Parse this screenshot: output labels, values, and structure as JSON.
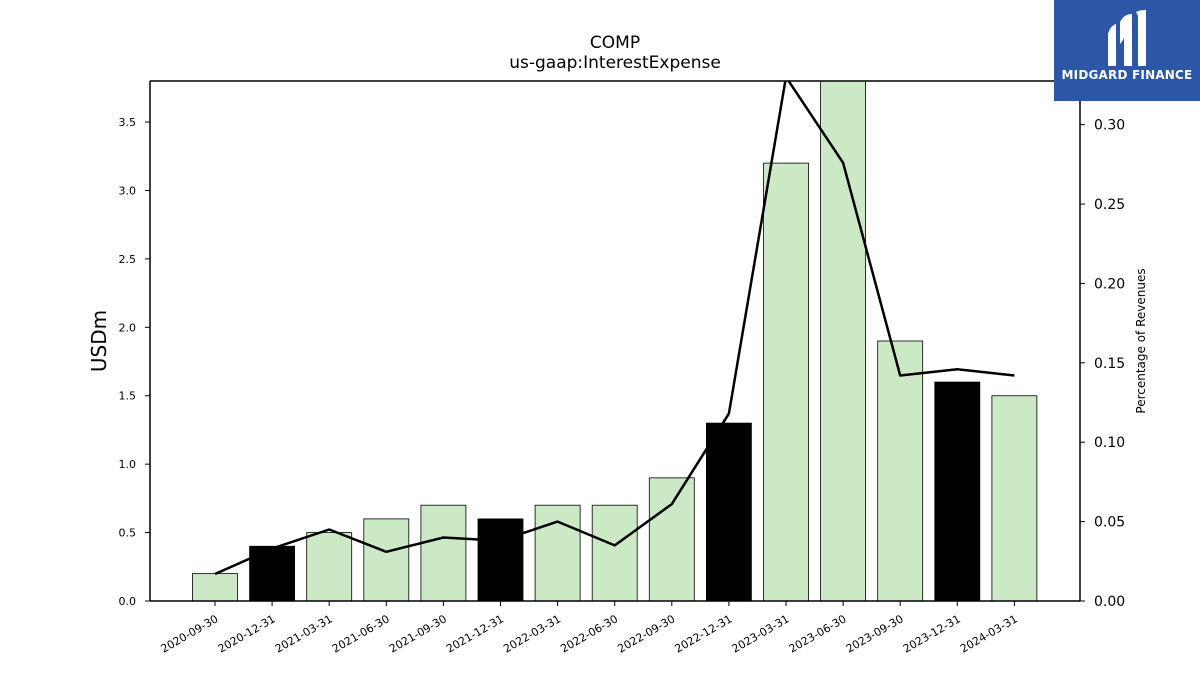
{
  "chart_data": {
    "type": "bar",
    "title": "COMP",
    "subtitle": "us-gaap:InterestExpense",
    "ylabel": "USDm",
    "ylabel_right": "Percentage of Revenues",
    "ylim": [
      0,
      3.8
    ],
    "ylim_right": [
      0,
      0.3275
    ],
    "yticks": [
      "0.0",
      "0.5",
      "1.0",
      "1.5",
      "2.0",
      "2.5",
      "3.0",
      "3.5"
    ],
    "yticks_right": [
      "0.00",
      "0.05",
      "0.10",
      "0.15",
      "0.20",
      "0.25",
      "0.30"
    ],
    "categories": [
      "2020-09-30",
      "2020-12-31",
      "2021-03-31",
      "2021-06-30",
      "2021-09-30",
      "2021-12-31",
      "2022-03-31",
      "2022-06-30",
      "2022-09-30",
      "2022-12-31",
      "2023-03-31",
      "2023-06-30",
      "2023-09-30",
      "2023-12-31",
      "2024-03-31"
    ],
    "series": [
      {
        "type": "bar",
        "values": [
          0.2,
          0.4,
          0.5,
          0.6,
          0.7,
          0.6,
          0.7,
          0.7,
          0.9,
          1.3,
          3.2,
          3.8,
          1.9,
          1.6,
          1.5
        ],
        "colors": [
          "#cce9c6",
          "#000000",
          "#cce9c6",
          "#cce9c6",
          "#cce9c6",
          "#000000",
          "#cce9c6",
          "#cce9c6",
          "#cce9c6",
          "#000000",
          "#cce9c6",
          "#cce9c6",
          "#cce9c6",
          "#000000",
          "#cce9c6"
        ]
      },
      {
        "type": "line",
        "axis": "right",
        "values": [
          0.017,
          0.033,
          0.045,
          0.031,
          0.04,
          0.038,
          0.05,
          0.035,
          0.061,
          0.118,
          0.33,
          0.276,
          0.142,
          0.146,
          0.142
        ],
        "color": "#000000"
      }
    ],
    "grid": false,
    "legend": "none"
  },
  "logo": {
    "text": "MIDGARD FINANCE",
    "background": "#2c57a6",
    "icon": "midgard-logo-icon"
  }
}
